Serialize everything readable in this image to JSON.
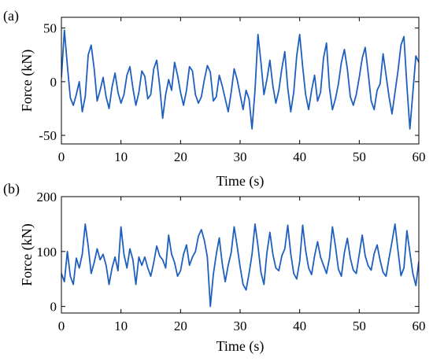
{
  "colors": {
    "line": "#1f5fbf",
    "axis": "#000000",
    "background": "#ffffff"
  },
  "chart_data": [
    {
      "type": "line",
      "panel_label": "(a)",
      "xlabel": "Time (s)",
      "ylabel": "Force (kN)",
      "xlim": [
        0,
        60
      ],
      "ylim": [
        -58,
        60
      ],
      "xticks": [
        0,
        10,
        20,
        30,
        40,
        50,
        60
      ],
      "yticks": [
        -50,
        0,
        50
      ],
      "grid": false,
      "series": [
        {
          "x": [
            0,
            0.5,
            1,
            1.5,
            2,
            2.5,
            3,
            3.5,
            4,
            4.5,
            5,
            5.5,
            6,
            6.5,
            7,
            7.5,
            8,
            8.5,
            9,
            9.5,
            10,
            10.5,
            11,
            11.5,
            12,
            12.5,
            13,
            13.5,
            14,
            14.5,
            15,
            15.5,
            16,
            16.5,
            17,
            17.5,
            18,
            18.5,
            19,
            19.5,
            20,
            20.5,
            21,
            21.5,
            22,
            22.5,
            23,
            23.5,
            24,
            24.5,
            25,
            25.5,
            26,
            26.5,
            27,
            27.5,
            28,
            28.5,
            29,
            29.5,
            30,
            30.5,
            31,
            31.5,
            32,
            32.5,
            33,
            33.5,
            34,
            34.5,
            35,
            35.5,
            36,
            36.5,
            37,
            37.5,
            38,
            38.5,
            39,
            39.5,
            40,
            40.5,
            41,
            41.5,
            42,
            42.5,
            43,
            43.5,
            44,
            44.5,
            45,
            45.5,
            46,
            46.5,
            47,
            47.5,
            48,
            48.5,
            49,
            49.5,
            50,
            50.5,
            51,
            51.5,
            52,
            52.5,
            53,
            53.5,
            54,
            54.5,
            55,
            55.5,
            56,
            56.5,
            57,
            57.5,
            58,
            58.5,
            59,
            59.5,
            60
          ],
          "y": [
            4,
            48,
            15,
            -15,
            -22,
            -12,
            0,
            -28,
            -14,
            25,
            34,
            12,
            -18,
            -8,
            4,
            -14,
            -25,
            -5,
            8,
            -10,
            -20,
            -12,
            6,
            14,
            -6,
            -22,
            -10,
            10,
            5,
            -16,
            -12,
            12,
            20,
            -4,
            -34,
            -12,
            2,
            -8,
            18,
            6,
            -10,
            -22,
            -8,
            14,
            10,
            -12,
            -20,
            -14,
            2,
            15,
            9,
            -18,
            -14,
            6,
            -4,
            -16,
            -28,
            -10,
            12,
            2,
            -12,
            -26,
            -8,
            -16,
            -44,
            -8,
            44,
            18,
            -12,
            2,
            20,
            -4,
            -20,
            -8,
            12,
            28,
            -6,
            -28,
            -10,
            24,
            44,
            14,
            -12,
            -26,
            -8,
            6,
            -18,
            -10,
            22,
            36,
            -6,
            -26,
            -16,
            -2,
            18,
            30,
            12,
            -14,
            -22,
            -12,
            4,
            22,
            32,
            8,
            -18,
            -26,
            -8,
            -2,
            26,
            6,
            -14,
            -30,
            -10,
            10,
            34,
            42,
            -4,
            -44,
            -10,
            24,
            18
          ]
        }
      ]
    },
    {
      "type": "line",
      "panel_label": "(b)",
      "xlabel": "Time (s)",
      "ylabel": "Force (kN)",
      "xlim": [
        0,
        60
      ],
      "ylim": [
        -12,
        200
      ],
      "xticks": [
        0,
        10,
        20,
        30,
        40,
        50,
        60
      ],
      "yticks": [
        0,
        100,
        200
      ],
      "grid": false,
      "series": [
        {
          "x": [
            0,
            0.5,
            1,
            1.5,
            2,
            2.5,
            3,
            3.5,
            4,
            4.5,
            5,
            5.5,
            6,
            6.5,
            7,
            7.5,
            8,
            8.5,
            9,
            9.5,
            10,
            10.5,
            11,
            11.5,
            12,
            12.5,
            13,
            13.5,
            14,
            14.5,
            15,
            15.5,
            16,
            16.5,
            17,
            17.5,
            18,
            18.5,
            19,
            19.5,
            20,
            20.5,
            21,
            21.5,
            22,
            22.5,
            23,
            23.5,
            24,
            24.5,
            25,
            25.5,
            26,
            26.5,
            27,
            27.5,
            28,
            28.5,
            29,
            29.5,
            30,
            30.5,
            31,
            31.5,
            32,
            32.5,
            33,
            33.5,
            34,
            34.5,
            35,
            35.5,
            36,
            36.5,
            37,
            37.5,
            38,
            38.5,
            39,
            39.5,
            40,
            40.5,
            41,
            41.5,
            42,
            42.5,
            43,
            43.5,
            44,
            44.5,
            45,
            45.5,
            46,
            46.5,
            47,
            47.5,
            48,
            48.5,
            49,
            49.5,
            50,
            50.5,
            51,
            51.5,
            52,
            52.5,
            53,
            53.5,
            54,
            54.5,
            55,
            55.5,
            56,
            56.5,
            57,
            57.5,
            58,
            58.5,
            59,
            59.5,
            60
          ],
          "y": [
            60,
            45,
            100,
            55,
            40,
            88,
            70,
            95,
            150,
            110,
            60,
            80,
            105,
            85,
            95,
            75,
            40,
            70,
            90,
            65,
            145,
            95,
            70,
            105,
            85,
            40,
            90,
            75,
            90,
            70,
            55,
            80,
            110,
            92,
            85,
            70,
            130,
            95,
            80,
            55,
            65,
            95,
            112,
            75,
            90,
            100,
            128,
            140,
            120,
            90,
            0,
            58,
            95,
            125,
            78,
            45,
            75,
            98,
            145,
            110,
            72,
            40,
            30,
            60,
            95,
            150,
            110,
            62,
            40,
            98,
            135,
            95,
            70,
            65,
            92,
            105,
            148,
            96,
            60,
            50,
            82,
            148,
            102,
            70,
            58,
            92,
            118,
            90,
            75,
            60,
            88,
            145,
            110,
            68,
            55,
            98,
            124,
            88,
            66,
            60,
            95,
            130,
            92,
            74,
            66,
            96,
            112,
            84,
            62,
            55,
            88,
            118,
            150,
            102,
            56,
            70,
            138,
            98,
            60,
            38,
            82
          ]
        }
      ]
    }
  ]
}
